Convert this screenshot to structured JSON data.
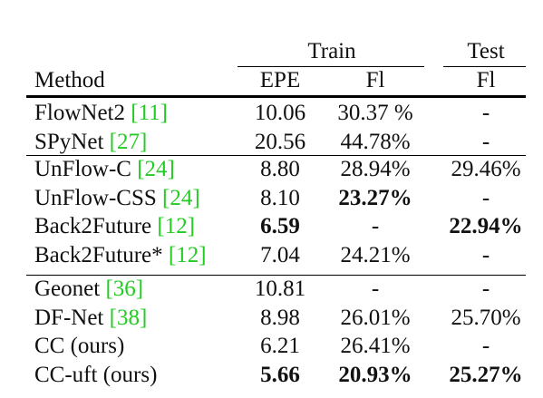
{
  "header": {
    "train_label": "Train",
    "test_label": "Test",
    "method_label": "Method",
    "sub_columns": [
      "EPE",
      "Fl",
      "Fl"
    ]
  },
  "groups": [
    {
      "rows": [
        {
          "method": "FlowNet2",
          "ref": "11",
          "epe": "10.06",
          "train_fl": "30.37 %",
          "test_fl": "-",
          "bold": []
        },
        {
          "method": "SPyNet",
          "ref": "27",
          "epe": "20.56",
          "train_fl": "44.78%",
          "test_fl": "-",
          "bold": []
        }
      ]
    },
    {
      "rows": [
        {
          "method": "UnFlow-C",
          "ref": "24",
          "epe": "8.80",
          "train_fl": "28.94%",
          "test_fl": "29.46%",
          "bold": []
        },
        {
          "method": "UnFlow-CSS",
          "ref": "24",
          "epe": "8.10",
          "train_fl": "23.27%",
          "test_fl": "-",
          "bold": [
            "train_fl"
          ]
        },
        {
          "method": "Back2Future",
          "ref": "12",
          "epe": "6.59",
          "train_fl": "-",
          "test_fl": "22.94%",
          "bold": [
            "epe",
            "test_fl"
          ]
        },
        {
          "method": "Back2Future*",
          "ref": "12",
          "epe": "7.04",
          "train_fl": "24.21%",
          "test_fl": "-",
          "bold": []
        }
      ]
    },
    {
      "rows": [
        {
          "method": "Geonet",
          "ref": "36",
          "epe": "10.81",
          "train_fl": "-",
          "test_fl": "-",
          "bold": []
        },
        {
          "method": "DF-Net",
          "ref": "38",
          "epe": "8.98",
          "train_fl": "26.01%",
          "test_fl": "25.70%",
          "bold": []
        },
        {
          "method": "CC (ours)",
          "ref": "",
          "epe": "6.21",
          "train_fl": "26.41%",
          "test_fl": "-",
          "bold": []
        },
        {
          "method": "CC-uft (ours)",
          "ref": "",
          "epe": "5.66",
          "train_fl": "20.93%",
          "test_fl": "25.27%",
          "bold": [
            "epe",
            "train_fl",
            "test_fl"
          ]
        }
      ]
    }
  ]
}
